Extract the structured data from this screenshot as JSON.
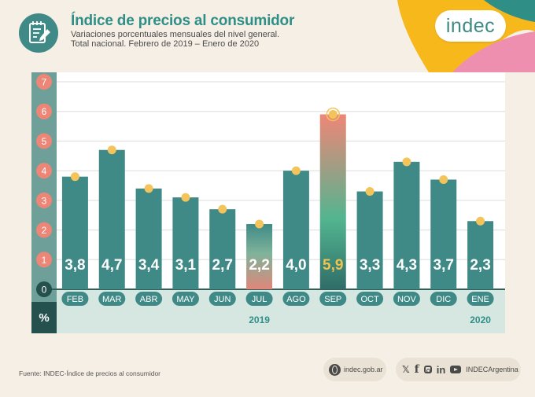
{
  "header": {
    "title": "Índice de precios al consumidor",
    "subtitle_line1": "Variaciones porcentuales mensuales del nivel general.",
    "subtitle_line2": "Total nacional. Febrero de 2019 – Enero de 2020",
    "icon": "document-edit-icon"
  },
  "logo": {
    "text": "indec"
  },
  "colors": {
    "accent": "#2f8f86",
    "bar": "#3f8a87",
    "highlight_label": "#f2c14e",
    "y_tick_bubble": "#ee8677",
    "dot": "#f2c45b",
    "zero_bubble": "#24504d",
    "logo_yellow": "#f7b81c",
    "logo_pink": "#ef8fb0",
    "logo_teal": "#2f8f86"
  },
  "chart_data": {
    "type": "bar",
    "categories": [
      "FEB",
      "MAR",
      "ABR",
      "MAY",
      "JUN",
      "JUL",
      "AGO",
      "SEP",
      "OCT",
      "NOV",
      "DIC",
      "ENE"
    ],
    "values": [
      3.8,
      4.7,
      3.4,
      3.1,
      2.7,
      2.2,
      4.0,
      5.9,
      3.3,
      4.3,
      3.7,
      2.3
    ],
    "value_labels": [
      "3,8",
      "4,7",
      "3,4",
      "3,1",
      "2,7",
      "2,2",
      "4,0",
      "5,9",
      "3,3",
      "4,3",
      "3,7",
      "2,3"
    ],
    "y_ticks": [
      "0",
      "1",
      "2",
      "3",
      "4",
      "5",
      "6",
      "7"
    ],
    "ylabel": "%",
    "ylim": [
      0,
      7
    ],
    "grid": true,
    "highlighted": [
      "JUL",
      "SEP"
    ],
    "year_labels": [
      {
        "text": "2019",
        "category": "JUL"
      },
      {
        "text": "2020",
        "category": "ENE"
      }
    ]
  },
  "footer": {
    "source": "Fuente: INDEC-Índice de precios al consumidor",
    "website": "indec.gob.ar",
    "website_icon": "globe-icon",
    "social_icons": [
      "twitter-icon",
      "facebook-icon",
      "instagram-icon",
      "linkedin-icon",
      "youtube-icon"
    ],
    "social_handle": "INDECArgentina"
  }
}
